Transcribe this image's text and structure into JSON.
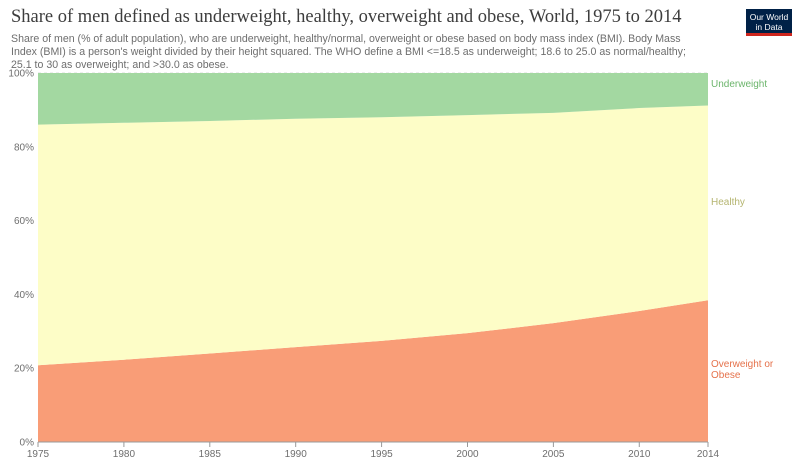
{
  "header": {
    "title": "Share of men defined as underweight, healthy, overweight and obese, World, 1975 to 2014",
    "subtitle": "Share of men (% of adult population), who are underweight, healthy/normal, overweight or obese based on body mass index (BMI). Body Mass Index (BMI) is a person's weight divided by their height squared. The WHO define a BMI <=18.5 as underweight; 18.6 to 25.0 as normal/healthy; 25.1 to 30 as overweight; and >30.0 as obese.",
    "logo_line1": "Our World",
    "logo_line2": "in Data"
  },
  "chart_data": {
    "type": "area",
    "stacked": true,
    "x": [
      1975,
      1980,
      1985,
      1990,
      1995,
      2000,
      2005,
      2010,
      2014
    ],
    "series": [
      {
        "name": "Overweight or Obese",
        "color": "#f99d77",
        "label_color": "#e5714a",
        "values": [
          20.8,
          22.3,
          24.0,
          25.7,
          27.4,
          29.5,
          32.2,
          35.5,
          38.4
        ]
      },
      {
        "name": "Healthy",
        "color": "#fdfdc7",
        "label_color": "#b5b570",
        "values": [
          65.2,
          64.2,
          63.0,
          61.9,
          60.6,
          59.1,
          57.0,
          55.0,
          52.8
        ]
      },
      {
        "name": "Underweight",
        "color": "#a3d8a1",
        "label_color": "#6cb56c",
        "values": [
          14.0,
          13.5,
          13.0,
          12.4,
          12.0,
          11.4,
          10.8,
          9.5,
          8.8
        ]
      }
    ],
    "ylim": [
      0,
      100
    ],
    "yticks": [
      0,
      20,
      40,
      60,
      80,
      100
    ],
    "ytick_labels": [
      "0%",
      "20%",
      "40%",
      "60%",
      "80%",
      "100%"
    ],
    "xticks": [
      1975,
      1980,
      1985,
      1990,
      1995,
      2000,
      2005,
      2010,
      2014
    ],
    "grid": true,
    "legend": "right",
    "legend_labels": [
      {
        "series": "Underweight",
        "lines": [
          "Underweight"
        ]
      },
      {
        "series": "Healthy",
        "lines": [
          "Healthy"
        ]
      },
      {
        "series": "Overweight or Obese",
        "lines": [
          "Overweight or",
          "Obese"
        ]
      }
    ]
  }
}
